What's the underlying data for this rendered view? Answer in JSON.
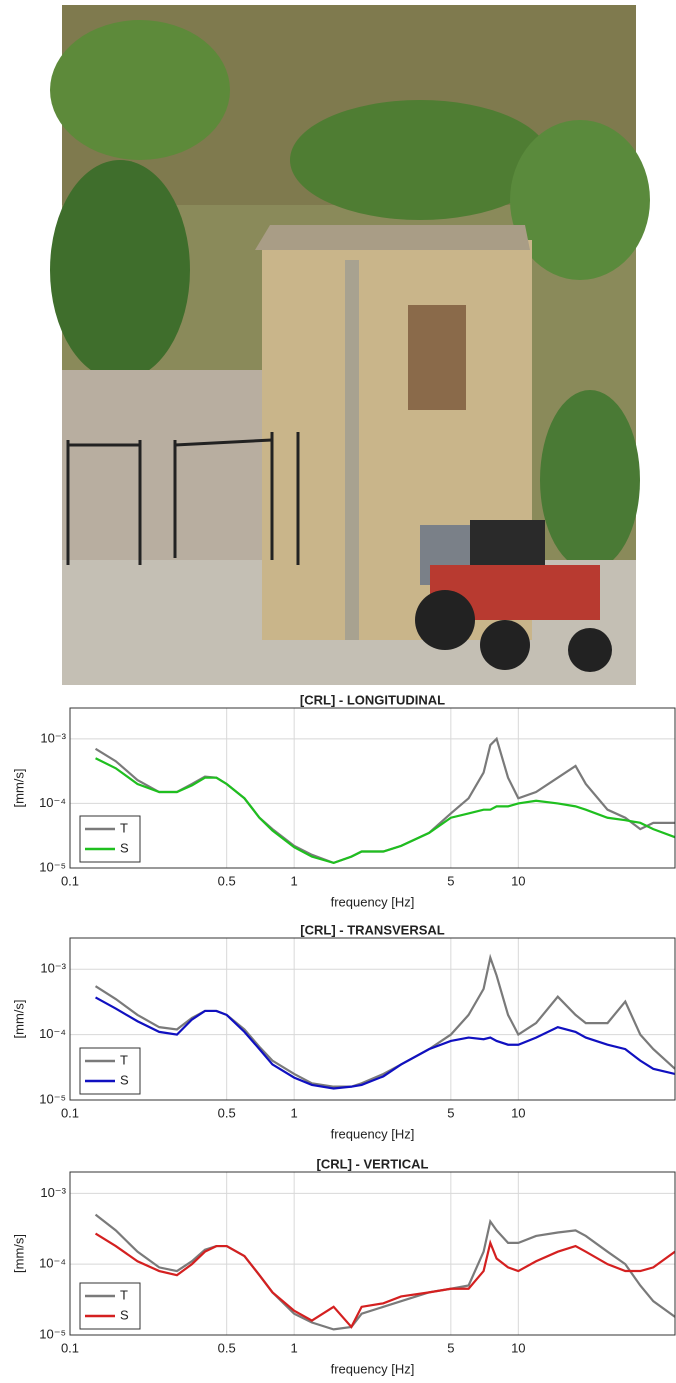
{
  "chart_data": [
    {
      "type": "line",
      "title": "[CRL] - LONGITUDINAL",
      "x_label": "frequency [Hz]",
      "y_label": "[mm/s]",
      "x_scale": "log",
      "y_scale": "log",
      "grid": true,
      "legend": "lower left",
      "xlim": [
        0.1,
        50
      ],
      "ylim": [
        1e-05,
        0.003
      ],
      "xticks": [
        0.1,
        0.5,
        1,
        5,
        10
      ],
      "yticks": [
        {
          "value": 1e-05,
          "label": "10⁻⁵"
        },
        {
          "value": 0.0001,
          "label": "10⁻⁴"
        },
        {
          "value": 0.001,
          "label": "10⁻³"
        }
      ],
      "x": [
        0.13,
        0.16,
        0.2,
        0.25,
        0.3,
        0.35,
        0.4,
        0.45,
        0.5,
        0.6,
        0.7,
        0.8,
        1,
        1.2,
        1.5,
        1.8,
        2,
        2.5,
        3,
        4,
        5,
        6,
        7,
        7.5,
        8,
        9,
        10,
        12,
        15,
        18,
        20,
        25,
        30,
        35,
        40,
        50
      ],
      "series": [
        {
          "name": "T",
          "color": "#7a7a7a",
          "values": [
            0.0007,
            0.00045,
            0.00023,
            0.00015,
            0.00015,
            0.0002,
            0.00026,
            0.00025,
            0.0002,
            0.00012,
            6e-05,
            4e-05,
            2.2e-05,
            1.6e-05,
            1.2e-05,
            1.5e-05,
            1.8e-05,
            1.8e-05,
            2.2e-05,
            3.5e-05,
            7e-05,
            0.00012,
            0.0003,
            0.0008,
            0.001,
            0.00025,
            0.00012,
            0.00015,
            0.00025,
            0.00038,
            0.0002,
            8e-05,
            6e-05,
            4e-05,
            5e-05,
            5e-05
          ]
        },
        {
          "name": "S",
          "color": "#1fbf1f",
          "values": [
            0.0005,
            0.00035,
            0.0002,
            0.00015,
            0.00015,
            0.00019,
            0.00025,
            0.00025,
            0.0002,
            0.00012,
            6e-05,
            3.8e-05,
            2.1e-05,
            1.5e-05,
            1.2e-05,
            1.5e-05,
            1.8e-05,
            1.8e-05,
            2.2e-05,
            3.5e-05,
            6e-05,
            7e-05,
            8e-05,
            8e-05,
            9e-05,
            9e-05,
            0.0001,
            0.00011,
            0.0001,
            9e-05,
            8e-05,
            6e-05,
            5.5e-05,
            5e-05,
            4e-05,
            3e-05
          ]
        }
      ]
    },
    {
      "type": "line",
      "title": "[CRL] - TRANSVERSAL",
      "x_label": "frequency [Hz]",
      "y_label": "[mm/s]",
      "x_scale": "log",
      "y_scale": "log",
      "grid": true,
      "legend": "lower left",
      "xlim": [
        0.1,
        50
      ],
      "ylim": [
        1e-05,
        0.003
      ],
      "xticks": [
        0.1,
        0.5,
        1,
        5,
        10
      ],
      "yticks": [
        {
          "value": 1e-05,
          "label": "10⁻⁵"
        },
        {
          "value": 0.0001,
          "label": "10⁻⁴"
        },
        {
          "value": 0.001,
          "label": "10⁻³"
        }
      ],
      "x": [
        0.13,
        0.16,
        0.2,
        0.25,
        0.3,
        0.35,
        0.4,
        0.45,
        0.5,
        0.6,
        0.7,
        0.8,
        1,
        1.2,
        1.5,
        1.8,
        2,
        2.5,
        3,
        4,
        5,
        6,
        7,
        7.5,
        8,
        9,
        10,
        12,
        15,
        18,
        20,
        25,
        30,
        35,
        40,
        50
      ],
      "series": [
        {
          "name": "T",
          "color": "#7a7a7a",
          "values": [
            0.00055,
            0.00035,
            0.0002,
            0.00013,
            0.00012,
            0.00018,
            0.00023,
            0.00023,
            0.0002,
            0.00012,
            6.5e-05,
            4e-05,
            2.5e-05,
            1.8e-05,
            1.6e-05,
            1.6e-05,
            1.8e-05,
            2.5e-05,
            3.5e-05,
            6e-05,
            0.0001,
            0.0002,
            0.0005,
            0.0015,
            0.0008,
            0.0002,
            0.0001,
            0.00015,
            0.00038,
            0.0002,
            0.00015,
            0.00015,
            0.00032,
            0.0001,
            6e-05,
            3e-05
          ]
        },
        {
          "name": "S",
          "color": "#1010c0",
          "values": [
            0.00037,
            0.00025,
            0.00016,
            0.00011,
            0.0001,
            0.00017,
            0.00023,
            0.00023,
            0.0002,
            0.00011,
            6e-05,
            3.5e-05,
            2.2e-05,
            1.7e-05,
            1.5e-05,
            1.6e-05,
            1.7e-05,
            2.3e-05,
            3.5e-05,
            6e-05,
            8e-05,
            9e-05,
            8.5e-05,
            9e-05,
            8e-05,
            7e-05,
            7e-05,
            9e-05,
            0.00013,
            0.00011,
            9e-05,
            7e-05,
            6e-05,
            4e-05,
            3e-05,
            2.5e-05
          ]
        }
      ]
    },
    {
      "type": "line",
      "title": "[CRL] - VERTICAL",
      "x_label": "frequency [Hz]",
      "y_label": "[mm/s]",
      "x_scale": "log",
      "y_scale": "log",
      "grid": true,
      "legend": "lower left",
      "xlim": [
        0.1,
        50
      ],
      "ylim": [
        1e-05,
        0.002
      ],
      "xticks": [
        0.1,
        0.5,
        1,
        5,
        10
      ],
      "yticks": [
        {
          "value": 1e-05,
          "label": "10⁻⁵"
        },
        {
          "value": 0.0001,
          "label": "10⁻⁴"
        },
        {
          "value": 0.001,
          "label": "10⁻³"
        }
      ],
      "x": [
        0.13,
        0.16,
        0.2,
        0.25,
        0.3,
        0.35,
        0.4,
        0.45,
        0.5,
        0.6,
        0.7,
        0.8,
        1,
        1.2,
        1.5,
        1.8,
        2,
        2.5,
        3,
        4,
        5,
        6,
        7,
        7.5,
        8,
        9,
        10,
        12,
        15,
        18,
        20,
        25,
        30,
        35,
        40,
        50
      ],
      "series": [
        {
          "name": "T",
          "color": "#7a7a7a",
          "values": [
            0.0005,
            0.0003,
            0.00015,
            9e-05,
            8e-05,
            0.00011,
            0.00016,
            0.00018,
            0.00018,
            0.00013,
            7e-05,
            4e-05,
            2e-05,
            1.5e-05,
            1.2e-05,
            1.3e-05,
            2e-05,
            2.5e-05,
            3e-05,
            4e-05,
            4.5e-05,
            5e-05,
            0.00015,
            0.0004,
            0.0003,
            0.0002,
            0.0002,
            0.00025,
            0.00028,
            0.0003,
            0.00025,
            0.00015,
            0.0001,
            5e-05,
            3e-05,
            1.8e-05
          ]
        },
        {
          "name": "S",
          "color": "#d42020",
          "values": [
            0.00027,
            0.00018,
            0.00011,
            8e-05,
            7e-05,
            0.0001,
            0.00015,
            0.00018,
            0.00018,
            0.00013,
            7e-05,
            4e-05,
            2.2e-05,
            1.6e-05,
            2.5e-05,
            1.3e-05,
            2.5e-05,
            2.8e-05,
            3.5e-05,
            4e-05,
            4.5e-05,
            4.5e-05,
            8e-05,
            0.0002,
            0.00012,
            9e-05,
            8e-05,
            0.00011,
            0.00015,
            0.00018,
            0.00015,
            0.0001,
            8e-05,
            8e-05,
            9e-05,
            0.00015
          ]
        }
      ]
    }
  ]
}
